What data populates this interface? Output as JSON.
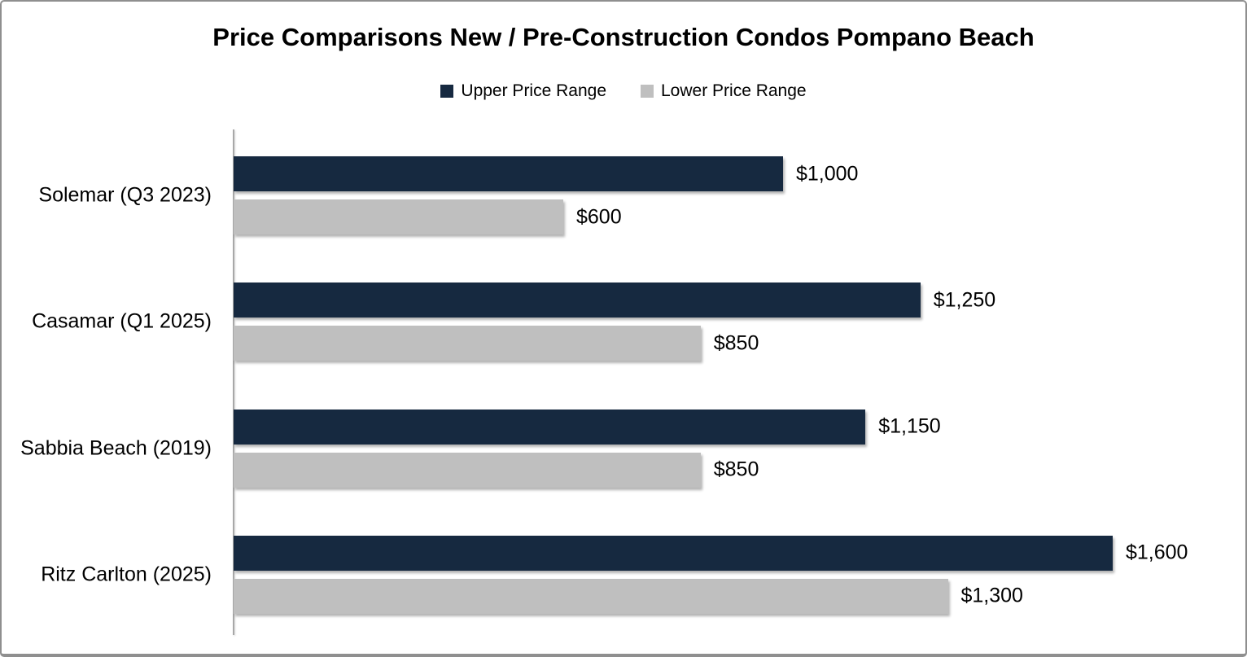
{
  "frame": {
    "background_color": "#ffffff",
    "border_color": "#8f8f8f"
  },
  "chart_data": {
    "type": "bar",
    "orientation": "horizontal",
    "title": "Price Comparisons New / Pre-Construction Condos Pompano Beach",
    "categories": [
      "Solemar (Q3 2023)",
      "Casamar (Q1 2025)",
      "Sabbia Beach (2019)",
      "Ritz Carlton (2025)"
    ],
    "series": [
      {
        "name": "Upper Price Range",
        "color": "#162940",
        "values": [
          1000,
          1250,
          1150,
          1600
        ],
        "labels": [
          "$1,000",
          "$1,250",
          "$1,150",
          "$1,600"
        ]
      },
      {
        "name": "Lower Price Range",
        "color": "#bfbfbf",
        "values": [
          600,
          850,
          850,
          1300
        ],
        "labels": [
          "$600",
          "$850",
          "$850",
          "$1,300"
        ]
      }
    ],
    "value_prefix": "$",
    "xlim": [
      0,
      1600
    ],
    "grid": false,
    "legend_position": "top-center",
    "axis_color": "#a8a8a8",
    "data_label_position": "outside-end"
  }
}
